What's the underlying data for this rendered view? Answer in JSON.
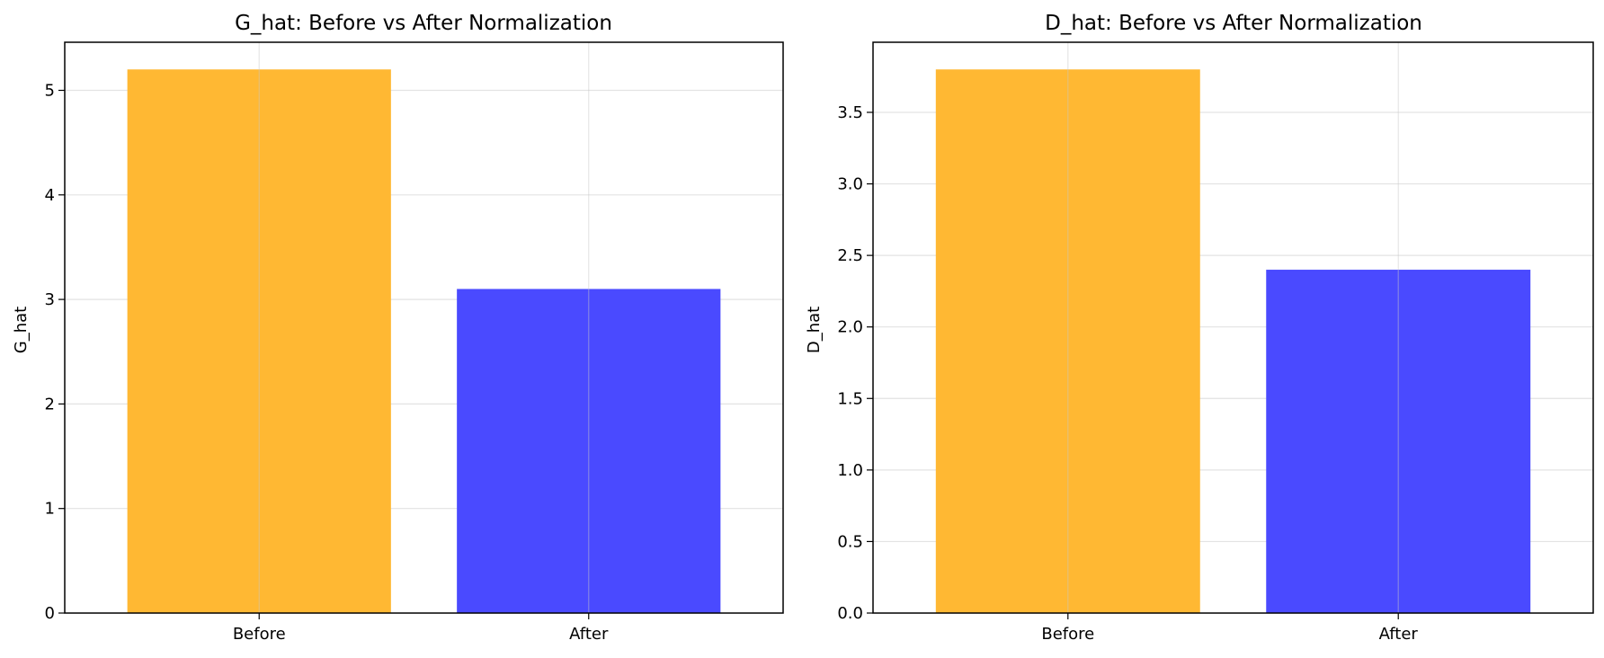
{
  "chart_data": [
    {
      "type": "bar",
      "title": "G_hat: Before vs After Normalization",
      "xlabel": "",
      "ylabel": "G_hat",
      "categories": [
        "Before",
        "After"
      ],
      "values": [
        5.2,
        3.1
      ],
      "bar_colors": [
        "#FFB833",
        "#4A4AFF"
      ],
      "ylim": [
        0,
        5.46
      ],
      "yticks": [
        0,
        1,
        2,
        3,
        4,
        5
      ],
      "ytick_labels": [
        "0",
        "1",
        "2",
        "3",
        "4",
        "5"
      ],
      "grid": true
    },
    {
      "type": "bar",
      "title": "D_hat: Before vs After Normalization",
      "xlabel": "",
      "ylabel": "D_hat",
      "categories": [
        "Before",
        "After"
      ],
      "values": [
        3.8,
        2.4
      ],
      "bar_colors": [
        "#FFB833",
        "#4A4AFF"
      ],
      "ylim": [
        0,
        3.99
      ],
      "yticks": [
        0.0,
        0.5,
        1.0,
        1.5,
        2.0,
        2.5,
        3.0,
        3.5
      ],
      "ytick_labels": [
        "0.0",
        "0.5",
        "1.0",
        "1.5",
        "2.0",
        "2.5",
        "3.0",
        "3.5"
      ],
      "grid": true
    }
  ]
}
